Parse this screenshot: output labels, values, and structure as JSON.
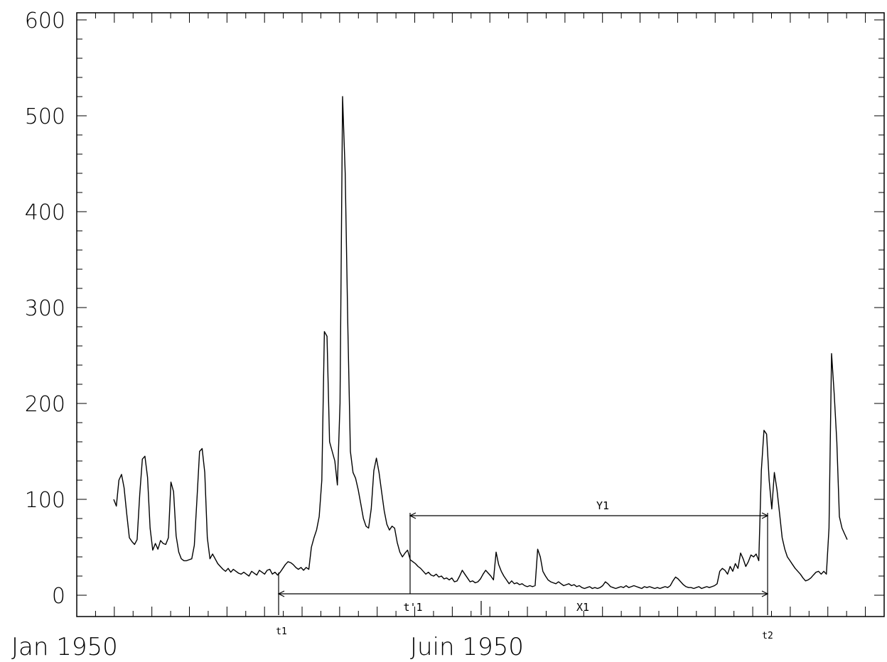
{
  "chart_data": {
    "type": "line",
    "ylim": [
      0,
      600
    ],
    "y_ticks": [
      "0",
      "100",
      "200",
      "300",
      "400",
      "500",
      "600"
    ],
    "x_labels": [
      "Jan 1950",
      "Juin 1950"
    ],
    "grid": false,
    "series": [
      {
        "values": [
          100,
          93,
          120,
          126,
          112,
          85,
          60,
          56,
          53,
          58,
          105,
          142,
          145,
          123,
          70,
          47,
          54,
          48,
          57,
          54,
          53,
          60,
          118,
          108,
          62,
          45,
          38,
          36,
          36,
          37,
          38,
          52,
          100,
          150,
          153,
          128,
          60,
          38,
          43,
          38,
          33,
          30,
          27,
          25,
          28,
          24,
          27,
          25,
          23,
          22,
          24,
          22,
          20,
          25,
          23,
          21,
          26,
          24,
          22,
          26,
          27,
          22,
          24,
          21,
          24,
          28,
          32,
          35,
          34,
          32,
          29,
          27,
          29,
          26,
          29,
          27,
          50,
          60,
          68,
          82,
          120,
          275,
          270,
          160,
          150,
          140,
          115,
          200,
          520,
          440,
          280,
          150,
          128,
          122,
          110,
          95,
          80,
          72,
          70,
          90,
          130,
          143,
          128,
          108,
          88,
          74,
          68,
          72,
          70,
          55,
          45,
          40,
          44,
          47,
          37,
          35,
          33,
          30,
          28,
          25,
          22,
          24,
          21,
          20,
          22,
          19,
          20,
          17,
          18,
          16,
          18,
          14,
          15,
          20,
          26,
          22,
          18,
          14,
          15,
          13,
          14,
          17,
          22,
          26,
          23,
          20,
          16,
          45,
          32,
          25,
          20,
          16,
          12,
          15,
          12,
          13,
          11,
          12,
          10,
          9,
          10,
          9,
          10,
          48,
          40,
          25,
          20,
          16,
          14,
          13,
          12,
          14,
          12,
          10,
          11,
          12,
          10,
          11,
          9,
          10,
          8,
          7,
          8,
          9,
          7,
          8,
          7,
          8,
          10,
          14,
          12,
          9,
          8,
          7,
          8,
          9,
          8,
          10,
          8,
          9,
          10,
          9,
          8,
          7,
          9,
          8,
          9,
          8,
          7,
          8,
          7,
          8,
          9,
          8,
          10,
          15,
          19,
          17,
          14,
          11,
          9,
          8,
          8,
          7,
          8,
          9,
          7,
          8,
          9,
          8,
          9,
          10,
          12,
          25,
          28,
          26,
          22,
          30,
          25,
          33,
          28,
          44,
          38,
          30,
          35,
          42,
          40,
          43,
          36,
          130,
          172,
          168,
          120,
          90,
          128,
          110,
          85,
          60,
          48,
          40,
          36,
          32,
          28,
          25,
          22,
          18,
          15,
          16,
          18,
          21,
          24,
          25,
          22,
          25,
          22,
          70,
          252,
          210,
          160,
          82,
          70,
          64,
          58
        ]
      }
    ],
    "annotations": {
      "t1": "t1",
      "t2": "t2",
      "t_prime_1": "t'1",
      "x1": "X1",
      "y1": "Y1"
    }
  }
}
